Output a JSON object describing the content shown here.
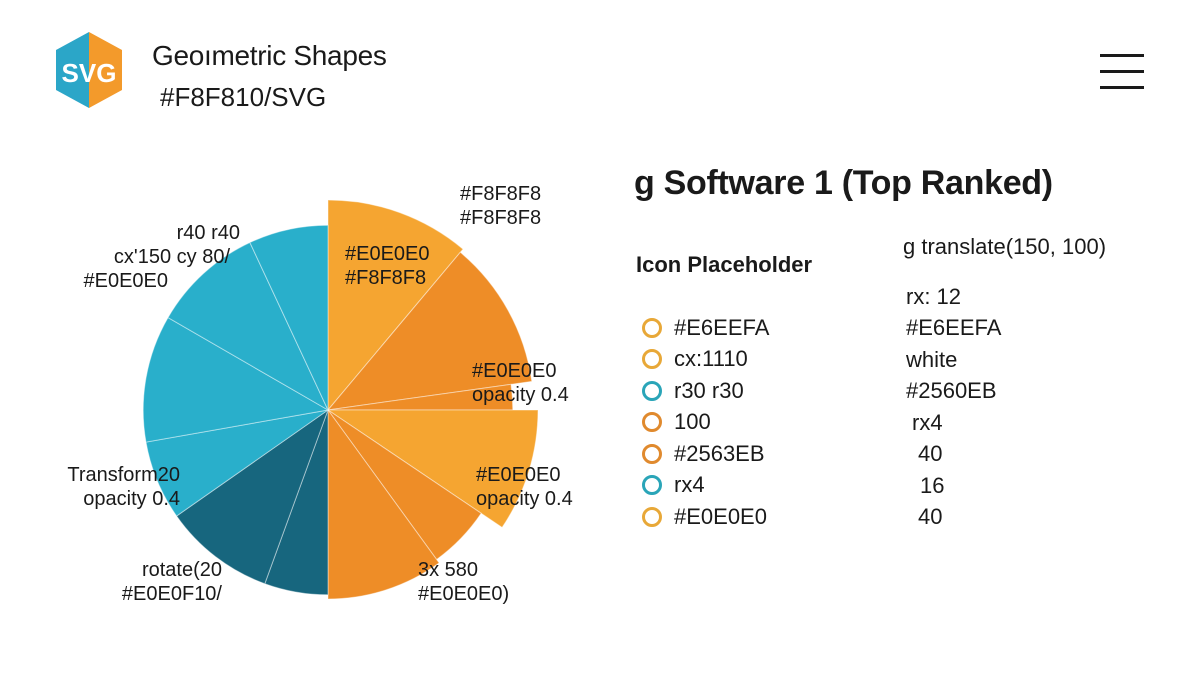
{
  "header": {
    "logo_text": "SVG",
    "title": "Geoımetric Shapes",
    "subtitle": "#F8F810/SVG",
    "menu_icon": "hamburger-menu-icon"
  },
  "colors": {
    "teal": "#29AFCB",
    "teal_dark": "#17667E",
    "orange": "#F5A531",
    "orange_dark": "#EE8D27",
    "ring_gold": "#E8A838",
    "ring_orange": "#E08A2E",
    "ring_teal": "#2AA5B8"
  },
  "chart_data": {
    "type": "pie",
    "variant": "polar-area",
    "slices": [
      {
        "id": "s1",
        "value": 100,
        "span_deg": 40,
        "color": "orange"
      },
      {
        "id": "s2",
        "value": 98,
        "span_deg": 42,
        "color": "orange_dark"
      },
      {
        "id": "s3",
        "value": 88,
        "span_deg": 8,
        "color": "orange_dark"
      },
      {
        "id": "s4",
        "value": 100,
        "span_deg": 34,
        "color": "orange"
      },
      {
        "id": "s5",
        "value": 88,
        "span_deg": 20,
        "color": "orange_dark"
      },
      {
        "id": "s6",
        "value": 90,
        "span_deg": 36,
        "color": "orange_dark"
      },
      {
        "id": "s7",
        "value": 88,
        "span_deg": 20,
        "color": "teal_dark"
      },
      {
        "id": "s8",
        "value": 88,
        "span_deg": 35,
        "color": "teal_dark"
      },
      {
        "id": "s9",
        "value": 88,
        "span_deg": 25,
        "color": "teal"
      },
      {
        "id": "s10",
        "value": 88,
        "span_deg": 40,
        "color": "teal"
      },
      {
        "id": "s11",
        "value": 88,
        "span_deg": 35,
        "color": "teal"
      },
      {
        "id": "s12",
        "value": 88,
        "span_deg": 25,
        "color": "teal"
      }
    ],
    "annotations": [
      {
        "lines": [
          "#F8F8F8",
          "#F8F8F8"
        ]
      },
      {
        "lines": [
          "#E0E0E0",
          "#F8F8F8"
        ]
      },
      {
        "lines": [
          "#E0E0E0",
          "opacity 0.4"
        ]
      },
      {
        "lines": [
          "#E0E0E0",
          "opacity 0.4"
        ]
      },
      {
        "lines": [
          "3x 580",
          "#E0E0E0)"
        ]
      },
      {
        "lines": [
          "rotate(20",
          "#E0E0F10/"
        ]
      },
      {
        "lines": [
          "Transform20",
          "opacity 0.4"
        ]
      },
      {
        "lines": [
          "r40 r40",
          "cx'150 cy 80/",
          "#E0E0E0"
        ]
      }
    ]
  },
  "panel": {
    "title": "g Software 1 (Top Ranked)",
    "icon_heading": "Icon Placeholder",
    "translate_label": "g translate(150, 100)",
    "rx_label": "rx: 12",
    "legend": [
      {
        "label": "#E6EEFA",
        "ring": "ring_gold",
        "value": "#E6EEFA"
      },
      {
        "label": "cx:1110",
        "ring": "ring_gold",
        "value": "white"
      },
      {
        "label": "r30 r30",
        "ring": "ring_teal",
        "value": "#2560EB"
      },
      {
        "label": "100",
        "ring": "ring_orange",
        "value": "rx4"
      },
      {
        "label": "#2563EB",
        "ring": "ring_orange",
        "value": "40"
      },
      {
        "label": "rx4",
        "ring": "ring_teal",
        "value": "16"
      },
      {
        "label": "#E0E0E0",
        "ring": "ring_gold",
        "value": "40"
      }
    ]
  }
}
